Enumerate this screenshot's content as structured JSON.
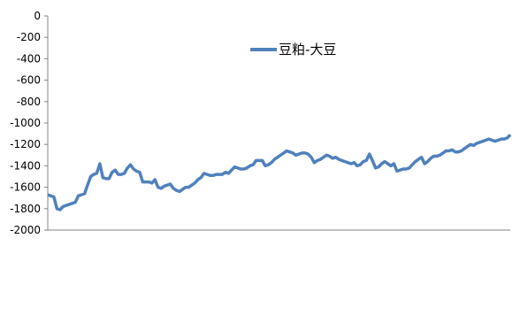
{
  "chart_data": {
    "type": "line",
    "title": "",
    "xlabel": "",
    "ylabel": "",
    "ylim": [
      -2000,
      0
    ],
    "yticks": [
      0,
      -200,
      -400,
      -600,
      -800,
      -1000,
      -1200,
      -1400,
      -1600,
      -1800,
      -2000
    ],
    "grid": false,
    "legend_position": "top-center",
    "series": [
      {
        "name": "豆粕-大豆",
        "color": "#4f81bd",
        "values": [
          -1670,
          -1680,
          -1690,
          -1800,
          -1810,
          -1780,
          -1770,
          -1760,
          -1750,
          -1740,
          -1680,
          -1670,
          -1660,
          -1580,
          -1500,
          -1480,
          -1470,
          -1380,
          -1510,
          -1520,
          -1520,
          -1460,
          -1440,
          -1480,
          -1480,
          -1470,
          -1420,
          -1390,
          -1430,
          -1450,
          -1460,
          -1550,
          -1550,
          -1550,
          -1560,
          -1530,
          -1600,
          -1610,
          -1590,
          -1580,
          -1570,
          -1610,
          -1630,
          -1640,
          -1620,
          -1600,
          -1600,
          -1580,
          -1560,
          -1530,
          -1510,
          -1470,
          -1480,
          -1490,
          -1490,
          -1480,
          -1480,
          -1480,
          -1460,
          -1470,
          -1440,
          -1410,
          -1420,
          -1430,
          -1430,
          -1420,
          -1400,
          -1390,
          -1350,
          -1350,
          -1350,
          -1400,
          -1390,
          -1370,
          -1340,
          -1320,
          -1300,
          -1280,
          -1260,
          -1270,
          -1280,
          -1300,
          -1290,
          -1280,
          -1280,
          -1290,
          -1320,
          -1370,
          -1350,
          -1340,
          -1320,
          -1300,
          -1310,
          -1330,
          -1320,
          -1340,
          -1350,
          -1360,
          -1370,
          -1380,
          -1370,
          -1400,
          -1390,
          -1360,
          -1350,
          -1290,
          -1350,
          -1420,
          -1410,
          -1380,
          -1360,
          -1380,
          -1400,
          -1380,
          -1450,
          -1440,
          -1430,
          -1430,
          -1420,
          -1390,
          -1360,
          -1340,
          -1320,
          -1380,
          -1360,
          -1330,
          -1310,
          -1310,
          -1300,
          -1280,
          -1260,
          -1260,
          -1250,
          -1270,
          -1270,
          -1260,
          -1240,
          -1220,
          -1200,
          -1210,
          -1190,
          -1180,
          -1170,
          -1160,
          -1150,
          -1160,
          -1170,
          -1160,
          -1150,
          -1150,
          -1140,
          -1110
        ]
      }
    ]
  }
}
